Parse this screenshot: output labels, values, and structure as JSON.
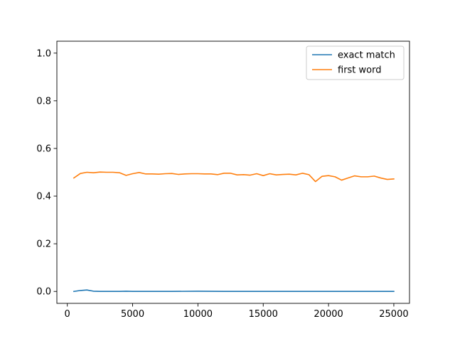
{
  "chart_data": {
    "type": "line",
    "title": "",
    "xlabel": "",
    "ylabel": "",
    "xlim": [
      -800,
      26200
    ],
    "ylim": [
      -0.05,
      1.05
    ],
    "xticks": [
      {
        "value": 0,
        "label": "0"
      },
      {
        "value": 5000,
        "label": "5000"
      },
      {
        "value": 10000,
        "label": "10000"
      },
      {
        "value": 15000,
        "label": "15000"
      },
      {
        "value": 20000,
        "label": "20000"
      },
      {
        "value": 25000,
        "label": "25000"
      }
    ],
    "yticks": [
      {
        "value": 0.0,
        "label": "0.0"
      },
      {
        "value": 0.2,
        "label": "0.2"
      },
      {
        "value": 0.4,
        "label": "0.4"
      },
      {
        "value": 0.6,
        "label": "0.6"
      },
      {
        "value": 0.8,
        "label": "0.8"
      },
      {
        "value": 1.0,
        "label": "1.0"
      }
    ],
    "grid": false,
    "legend_position": "top-right",
    "series": [
      {
        "name": "exact match",
        "color": "#1f77b4",
        "points": [
          [
            500,
            0.0
          ],
          [
            1000,
            0.004
          ],
          [
            1500,
            0.006
          ],
          [
            2000,
            0.001
          ],
          [
            2500,
            0.0
          ],
          [
            3000,
            0.0
          ],
          [
            3500,
            0.0
          ],
          [
            4000,
            0.0
          ],
          [
            4500,
            0.001
          ],
          [
            5000,
            0.0
          ],
          [
            6000,
            0.0
          ],
          [
            8000,
            0.0
          ],
          [
            10000,
            0.001
          ],
          [
            12000,
            0.0
          ],
          [
            14000,
            0.0
          ],
          [
            16000,
            0.0
          ],
          [
            18000,
            0.0
          ],
          [
            20000,
            0.0
          ],
          [
            22000,
            0.0
          ],
          [
            24000,
            0.0
          ],
          [
            25000,
            0.0
          ]
        ]
      },
      {
        "name": "first word",
        "color": "#ff7f0e",
        "points": [
          [
            500,
            0.476
          ],
          [
            1000,
            0.495
          ],
          [
            1500,
            0.5
          ],
          [
            2000,
            0.498
          ],
          [
            2500,
            0.501
          ],
          [
            3000,
            0.5
          ],
          [
            3500,
            0.5
          ],
          [
            4000,
            0.498
          ],
          [
            4500,
            0.487
          ],
          [
            5000,
            0.494
          ],
          [
            5500,
            0.499
          ],
          [
            6000,
            0.493
          ],
          [
            6500,
            0.493
          ],
          [
            7000,
            0.492
          ],
          [
            7500,
            0.494
          ],
          [
            8000,
            0.495
          ],
          [
            8500,
            0.491
          ],
          [
            9000,
            0.493
          ],
          [
            9500,
            0.494
          ],
          [
            10000,
            0.494
          ],
          [
            10500,
            0.493
          ],
          [
            11000,
            0.493
          ],
          [
            11500,
            0.49
          ],
          [
            12000,
            0.496
          ],
          [
            12500,
            0.496
          ],
          [
            13000,
            0.489
          ],
          [
            13500,
            0.49
          ],
          [
            14000,
            0.488
          ],
          [
            14500,
            0.494
          ],
          [
            15000,
            0.486
          ],
          [
            15500,
            0.494
          ],
          [
            16000,
            0.489
          ],
          [
            16500,
            0.491
          ],
          [
            17000,
            0.492
          ],
          [
            17500,
            0.489
          ],
          [
            18000,
            0.496
          ],
          [
            18500,
            0.49
          ],
          [
            19000,
            0.461
          ],
          [
            19500,
            0.483
          ],
          [
            20000,
            0.486
          ],
          [
            20500,
            0.481
          ],
          [
            21000,
            0.467
          ],
          [
            21500,
            0.476
          ],
          [
            22000,
            0.485
          ],
          [
            22500,
            0.481
          ],
          [
            23000,
            0.481
          ],
          [
            23500,
            0.484
          ],
          [
            24000,
            0.476
          ],
          [
            24500,
            0.47
          ],
          [
            25000,
            0.472
          ]
        ]
      }
    ]
  }
}
